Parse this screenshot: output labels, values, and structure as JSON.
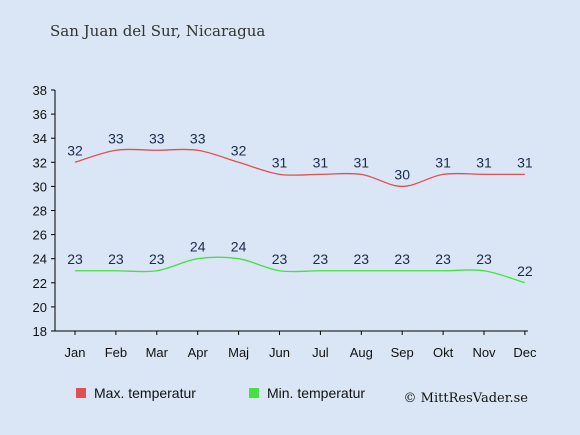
{
  "colors": {
    "background": "#dae6f5",
    "max": "#e05050",
    "min": "#44e044",
    "axis": "#000000"
  },
  "chart_data": {
    "type": "line",
    "title": "San Juan del Sur, Nicaragua",
    "categories": [
      "Jan",
      "Feb",
      "Mar",
      "Apr",
      "Maj",
      "Jun",
      "Jul",
      "Aug",
      "Sep",
      "Okt",
      "Nov",
      "Dec"
    ],
    "ylim": [
      18,
      38
    ],
    "yticks": [
      18,
      20,
      22,
      24,
      26,
      28,
      30,
      32,
      34,
      36,
      38
    ],
    "grid": false,
    "legend_placement": "bottom",
    "series": [
      {
        "name": "Max. temperatur",
        "color": "#e05050",
        "values": [
          32,
          33,
          33,
          33,
          32,
          31,
          31,
          31,
          30,
          31,
          31,
          31
        ]
      },
      {
        "name": "Min. temperatur",
        "color": "#44e044",
        "values": [
          23,
          23,
          23,
          24,
          24,
          23,
          23,
          23,
          23,
          23,
          23,
          22
        ]
      }
    ]
  },
  "footer": {
    "copyright": "© MittResVader.se"
  }
}
